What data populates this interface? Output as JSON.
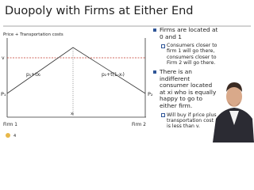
{
  "title": "Duopoly with Firms at Either End",
  "diagram": {
    "y_axis_label": "Price + Transportation costs",
    "v_label": "v",
    "p1_label": "P₁",
    "p2_label": "P₂",
    "left_line_label": "p₁+txᵢ",
    "right_line_label": "p₂+t(1-xᵢ)",
    "x_label": "xᵢ",
    "firm1_label": "Firm 1",
    "firm2_label": "Firm 2"
  },
  "bullets": [
    {
      "text": "Firms are located at 0 and 1",
      "sub": [
        "Consumers closer to firm 1 will go there, consumers closer to Firm 2 will go there."
      ]
    },
    {
      "text": "There is an indifferent consumer located at xi who is equally happy to go to either firm.",
      "sub": [
        "Will buy if price plus transportation cost is less than v."
      ]
    }
  ],
  "slide_number": "4"
}
